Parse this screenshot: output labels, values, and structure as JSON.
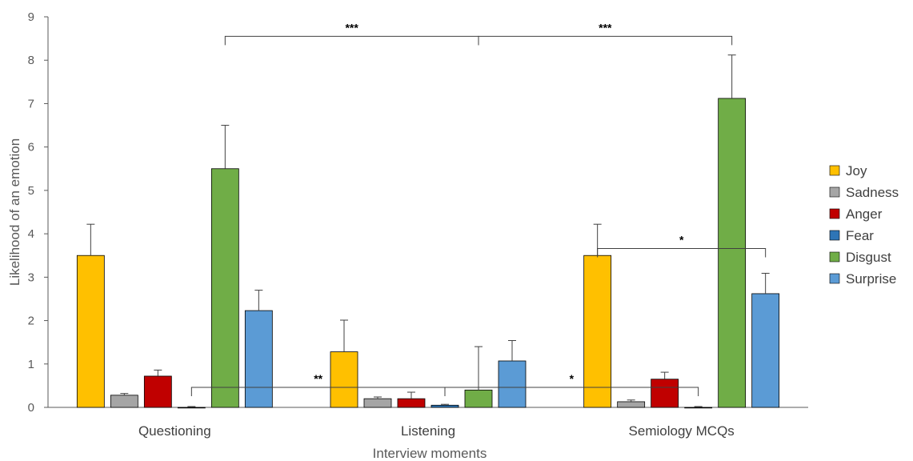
{
  "chart_data": {
    "type": "bar",
    "xlabel": "Interview moments",
    "ylabel": "Likelihood of an emotion",
    "ylim": [
      0,
      9
    ],
    "yticks": [
      0,
      1,
      2,
      3,
      4,
      5,
      6,
      7,
      8,
      9
    ],
    "categories": [
      "Questioning",
      "Listening",
      "Semiology MCQs"
    ],
    "series": [
      {
        "name": "Joy",
        "color": "#FFC000",
        "values": [
          3.5,
          1.28,
          3.5
        ],
        "errors": [
          0.72,
          0.73,
          0.72
        ]
      },
      {
        "name": "Sadness",
        "color": "#A5A5A5",
        "values": [
          0.28,
          0.2,
          0.13
        ],
        "errors": [
          0.04,
          0.04,
          0.04
        ]
      },
      {
        "name": "Anger",
        "color": "#C00000",
        "values": [
          0.72,
          0.2,
          0.65
        ],
        "errors": [
          0.14,
          0.15,
          0.16
        ]
      },
      {
        "name": "Fear",
        "color": "#2E75B6",
        "values": [
          0.0,
          0.05,
          0.0
        ],
        "errors": [
          0.02,
          0.02,
          0.02
        ]
      },
      {
        "name": "Disgust",
        "color": "#70AD47",
        "values": [
          5.5,
          0.4,
          7.12
        ],
        "errors": [
          1.0,
          1.0,
          1.0
        ]
      },
      {
        "name": "Surprise",
        "color": "#5B9BD5",
        "values": [
          2.23,
          1.07,
          2.62
        ],
        "errors": [
          0.47,
          0.47,
          0.47
        ]
      }
    ],
    "legend_position": "right",
    "annotations": [
      {
        "label": "***",
        "from": {
          "category": 0,
          "series": 4
        },
        "to": {
          "category": 1,
          "series": 4
        },
        "y": 8.55,
        "direction": "down"
      },
      {
        "label": "***",
        "from": {
          "category": 1,
          "series": 4
        },
        "to": {
          "category": 2,
          "series": 4
        },
        "y": 8.55,
        "direction": "down"
      },
      {
        "label": "*",
        "from": {
          "category": 2,
          "series": 0
        },
        "to": {
          "category": 2,
          "series": 5
        },
        "y": 3.66,
        "direction": "down"
      },
      {
        "label": "**",
        "from": {
          "category": 0,
          "series": 3
        },
        "to": {
          "category": 1,
          "series": 3
        },
        "y": 0.46,
        "direction": "down"
      },
      {
        "label": "*",
        "from": {
          "category": 1,
          "series": 3
        },
        "to": {
          "category": 2,
          "series": 3
        },
        "y": 0.46,
        "direction": "down"
      }
    ]
  }
}
